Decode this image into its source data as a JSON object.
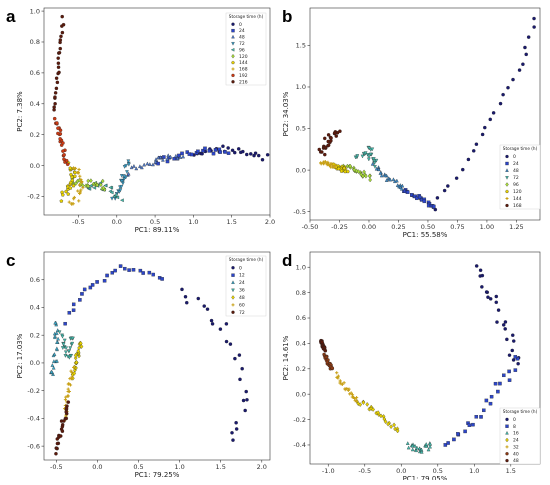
{
  "figure": {
    "panel_letters": [
      "a",
      "b",
      "c",
      "d"
    ]
  },
  "chart_data": [
    {
      "type": "scatter",
      "panel": "a",
      "xlabel": "PC1: 89.11%",
      "ylabel": "PC2: 7.38%",
      "xlim": [
        -0.95,
        2.0
      ],
      "ylim": [
        -0.32,
        1.02
      ],
      "xticks": [
        -0.5,
        0.0,
        0.5,
        1.0,
        1.5,
        2.0
      ],
      "xtick_labels": [
        "-0.5",
        "0.0",
        "0.5",
        "1.0",
        "1.5",
        "2.0"
      ],
      "yticks": [
        -0.2,
        0.0,
        0.2,
        0.4,
        0.6,
        0.8,
        1.0
      ],
      "ytick_labels": [
        "-0.2",
        "0.0",
        "0.2",
        "0.4",
        "0.6",
        "0.8",
        "1.0"
      ],
      "legend_title": "Storage time (h)",
      "legend_position": "top-right",
      "series": [
        {
          "name": "0",
          "color": "#1a1a6e",
          "marker": "circle",
          "path": [
            [
              1.0,
              0.08
            ],
            [
              1.4,
              0.11
            ],
            [
              1.7,
              0.08
            ],
            [
              1.95,
              0.05
            ]
          ],
          "spread": 0.02
        },
        {
          "name": "24",
          "color": "#2d46c8",
          "marker": "square",
          "path": [
            [
              0.5,
              0.02
            ],
            [
              0.8,
              0.06
            ],
            [
              1.1,
              0.09
            ],
            [
              1.45,
              0.1
            ]
          ],
          "spread": 0.02
        },
        {
          "name": "48",
          "color": "#4f79c9",
          "marker": "triangle",
          "path": [
            [
              0.1,
              -0.05
            ],
            [
              0.35,
              0.0
            ],
            [
              0.6,
              0.04
            ],
            [
              0.85,
              0.06
            ]
          ],
          "spread": 0.02
        },
        {
          "name": "72",
          "color": "#3aa0c9",
          "marker": "triangle-down",
          "path": [
            [
              -0.05,
              -0.2
            ],
            [
              0.05,
              -0.15
            ],
            [
              0.1,
              -0.05
            ],
            [
              0.15,
              0.02
            ]
          ],
          "spread": 0.025
        },
        {
          "name": "96",
          "color": "#44b9ac",
          "marker": "triangle-left",
          "path": [
            [
              -0.4,
              -0.15
            ],
            [
              -0.25,
              -0.12
            ],
            [
              -0.1,
              -0.15
            ],
            [
              0.05,
              -0.2
            ]
          ],
          "spread": 0.025
        },
        {
          "name": "120",
          "color": "#a9dc3a",
          "marker": "diamond",
          "path": [
            [
              -0.6,
              -0.1
            ],
            [
              -0.45,
              -0.12
            ],
            [
              -0.3,
              -0.1
            ],
            [
              -0.15,
              -0.14
            ]
          ],
          "spread": 0.025
        },
        {
          "name": "144",
          "color": "#e8d200",
          "marker": "pentagon",
          "path": [
            [
              -0.7,
              -0.2
            ],
            [
              -0.6,
              -0.15
            ],
            [
              -0.55,
              -0.05
            ],
            [
              -0.62,
              0.02
            ]
          ],
          "spread": 0.03
        },
        {
          "name": "168",
          "color": "#c8a016",
          "marker": "plus",
          "path": [
            [
              -0.6,
              -0.25
            ],
            [
              -0.5,
              -0.2
            ],
            [
              -0.45,
              -0.1
            ],
            [
              -0.55,
              -0.02
            ]
          ],
          "spread": 0.025
        },
        {
          "name": "192",
          "color": "#cc3a14",
          "marker": "circle",
          "path": [
            [
              -0.65,
              0.0
            ],
            [
              -0.7,
              0.1
            ],
            [
              -0.75,
              0.2
            ],
            [
              -0.8,
              0.3
            ]
          ],
          "spread": 0.02
        },
        {
          "name": "216",
          "color": "#5c1a0c",
          "marker": "circle",
          "path": [
            [
              -0.82,
              0.35
            ],
            [
              -0.78,
              0.5
            ],
            [
              -0.75,
              0.7
            ],
            [
              -0.7,
              0.95
            ]
          ],
          "spread": 0.015
        }
      ]
    },
    {
      "type": "scatter",
      "panel": "b",
      "xlabel": "PC1: 55.58%",
      "ylabel": "PC2: 34.03%",
      "xlim": [
        -0.5,
        1.45
      ],
      "ylim": [
        -0.6,
        1.95
      ],
      "xticks": [
        -0.5,
        -0.25,
        0.0,
        0.25,
        0.5,
        0.75,
        1.0,
        1.25
      ],
      "xtick_labels": [
        "-0.50",
        "-0.25",
        "0.00",
        "0.25",
        "0.50",
        "0.75",
        "1.00",
        "1.25"
      ],
      "yticks": [
        -0.5,
        0.0,
        0.5,
        1.0,
        1.5
      ],
      "ytick_labels": [
        "-0.5",
        "0.0",
        "0.5",
        "1.0",
        "1.5"
      ],
      "legend_title": "Storage time (h)",
      "legend_position": "bottom-right",
      "series": [
        {
          "name": "0",
          "color": "#1a1a6e",
          "marker": "circle",
          "path": [
            [
              0.55,
              -0.45
            ],
            [
              0.8,
              0.05
            ],
            [
              1.05,
              0.65
            ],
            [
              1.3,
              1.3
            ],
            [
              1.4,
              1.8
            ]
          ],
          "spread": 0.025
        },
        {
          "name": "24",
          "color": "#2d46c8",
          "marker": "square",
          "path": [
            [
              0.3,
              -0.25
            ],
            [
              0.45,
              -0.35
            ],
            [
              0.55,
              -0.45
            ]
          ],
          "spread": 0.02
        },
        {
          "name": "48",
          "color": "#3c88c4",
          "marker": "triangle",
          "path": [
            [
              0.05,
              0.05
            ],
            [
              0.15,
              -0.1
            ],
            [
              0.3,
              -0.22
            ]
          ],
          "spread": 0.025
        },
        {
          "name": "72",
          "color": "#44b9ac",
          "marker": "triangle-down",
          "path": [
            [
              -0.1,
              0.15
            ],
            [
              0.0,
              0.25
            ],
            [
              0.05,
              0.05
            ]
          ],
          "spread": 0.03
        },
        {
          "name": "96",
          "color": "#a9dc3a",
          "marker": "diamond",
          "path": [
            [
              -0.2,
              0.05
            ],
            [
              -0.1,
              0.0
            ],
            [
              0.0,
              -0.1
            ]
          ],
          "spread": 0.025
        },
        {
          "name": "120",
          "color": "#e8d200",
          "marker": "pentagon",
          "path": [
            [
              -0.3,
              0.05
            ],
            [
              -0.2,
              0.0
            ]
          ],
          "spread": 0.025
        },
        {
          "name": "144",
          "color": "#c8a016",
          "marker": "plus",
          "path": [
            [
              -0.4,
              0.1
            ],
            [
              -0.3,
              0.05
            ]
          ],
          "spread": 0.02
        },
        {
          "name": "168",
          "color": "#5c1a0c",
          "marker": "circle",
          "path": [
            [
              -0.4,
              0.2
            ],
            [
              -0.35,
              0.38
            ],
            [
              -0.25,
              0.45
            ]
          ],
          "spread": 0.03
        }
      ]
    },
    {
      "type": "scatter",
      "panel": "c",
      "xlabel": "PC1: 79.25%",
      "ylabel": "PC2: 17.03%",
      "xlim": [
        -0.65,
        2.1
      ],
      "ylim": [
        -0.7,
        0.8
      ],
      "xticks": [
        -0.5,
        0.0,
        0.5,
        1.0,
        1.5,
        2.0
      ],
      "xtick_labels": [
        "-0.5",
        "0.0",
        "0.5",
        "1.0",
        "1.5",
        "2.0"
      ],
      "yticks": [
        -0.6,
        -0.4,
        -0.2,
        0.0,
        0.2,
        0.4,
        0.6
      ],
      "ytick_labels": [
        "-0.6",
        "-0.4",
        "-0.2",
        "0.0",
        "0.2",
        "0.4",
        "0.6"
      ],
      "legend_title": "Storage time (h)",
      "legend_position": "top-right",
      "series": [
        {
          "name": "0",
          "color": "#1a1a6e",
          "marker": "circle",
          "path": [
            [
              1.0,
              0.5
            ],
            [
              1.5,
              0.3
            ],
            [
              1.7,
              0.0
            ],
            [
              1.8,
              -0.3
            ],
            [
              1.6,
              -0.6
            ]
          ],
          "spread": 0.05
        },
        {
          "name": "12",
          "color": "#2d46c8",
          "marker": "square",
          "path": [
            [
              -0.4,
              0.3
            ],
            [
              -0.1,
              0.55
            ],
            [
              0.3,
              0.7
            ],
            [
              0.8,
              0.6
            ]
          ],
          "spread": 0.025
        },
        {
          "name": "24",
          "color": "#3ca8c9",
          "marker": "triangle",
          "path": [
            [
              -0.55,
              -0.1
            ],
            [
              -0.5,
              0.1
            ],
            [
              -0.5,
              0.3
            ]
          ],
          "spread": 0.025
        },
        {
          "name": "36",
          "color": "#44b9ac",
          "marker": "triangle-down",
          "path": [
            [
              -0.45,
              0.2
            ],
            [
              -0.35,
              0.05
            ],
            [
              -0.3,
              0.2
            ]
          ],
          "spread": 0.025
        },
        {
          "name": "48",
          "color": "#e8d200",
          "marker": "diamond",
          "path": [
            [
              -0.3,
              -0.1
            ],
            [
              -0.25,
              0.05
            ],
            [
              -0.2,
              0.15
            ]
          ],
          "spread": 0.02
        },
        {
          "name": "60",
          "color": "#c8a016",
          "marker": "plus",
          "path": [
            [
              -0.4,
              -0.4
            ],
            [
              -0.35,
              -0.2
            ],
            [
              -0.3,
              -0.05
            ]
          ],
          "spread": 0.02
        },
        {
          "name": "72",
          "color": "#5c1a0c",
          "marker": "circle",
          "path": [
            [
              -0.5,
              -0.65
            ],
            [
              -0.45,
              -0.5
            ],
            [
              -0.35,
              -0.3
            ]
          ],
          "spread": 0.02
        }
      ]
    },
    {
      "type": "scatter",
      "panel": "d",
      "xlabel": "PC1: 79.05%",
      "ylabel": "PC2: 14.61%",
      "xlim": [
        -1.25,
        1.9
      ],
      "ylim": [
        -0.55,
        1.12
      ],
      "xticks": [
        -1.0,
        -0.5,
        0.0,
        0.5,
        1.0,
        1.5
      ],
      "xtick_labels": [
        "-1.0",
        "-0.5",
        "0.0",
        "0.5",
        "1.0",
        "1.5"
      ],
      "yticks": [
        -0.4,
        -0.2,
        0.0,
        0.2,
        0.4,
        0.6,
        0.8,
        1.0
      ],
      "ytick_labels": [
        "-0.4",
        "-0.2",
        "0.0",
        "0.2",
        "0.4",
        "0.6",
        "0.8",
        "1.0"
      ],
      "legend_title": "Storage time (h)",
      "legend_position": "bottom-right",
      "series": [
        {
          "name": "0",
          "color": "#1a1a6e",
          "marker": "circle",
          "path": [
            [
              1.0,
              1.0
            ],
            [
              1.3,
              0.7
            ],
            [
              1.5,
              0.4
            ],
            [
              1.6,
              0.2
            ]
          ],
          "spread": 0.05
        },
        {
          "name": "8",
          "color": "#2d46c8",
          "marker": "square",
          "path": [
            [
              0.6,
              -0.4
            ],
            [
              1.0,
              -0.2
            ],
            [
              1.4,
              0.1
            ],
            [
              1.6,
              0.3
            ]
          ],
          "spread": 0.04
        },
        {
          "name": "16",
          "color": "#44b9ac",
          "marker": "triangle",
          "path": [
            [
              0.1,
              -0.4
            ],
            [
              0.25,
              -0.45
            ],
            [
              0.4,
              -0.4
            ]
          ],
          "spread": 0.025
        },
        {
          "name": "24",
          "color": "#e8d200",
          "marker": "diamond",
          "path": [
            [
              -0.6,
              -0.05
            ],
            [
              -0.3,
              -0.15
            ],
            [
              -0.05,
              -0.3
            ]
          ],
          "spread": 0.02
        },
        {
          "name": "32",
          "color": "#c8a016",
          "marker": "plus",
          "path": [
            [
              -0.9,
              0.15
            ],
            [
              -0.75,
              0.05
            ],
            [
              -0.6,
              -0.05
            ]
          ],
          "spread": 0.02
        },
        {
          "name": "40",
          "color": "#8c3a14",
          "marker": "circle",
          "path": [
            [
              -1.05,
              0.3
            ],
            [
              -0.95,
              0.2
            ]
          ],
          "spread": 0.015
        },
        {
          "name": "48",
          "color": "#5c1a0c",
          "marker": "circle",
          "path": [
            [
              -1.1,
              0.42
            ],
            [
              -1.05,
              0.35
            ]
          ],
          "spread": 0.012
        }
      ]
    }
  ]
}
